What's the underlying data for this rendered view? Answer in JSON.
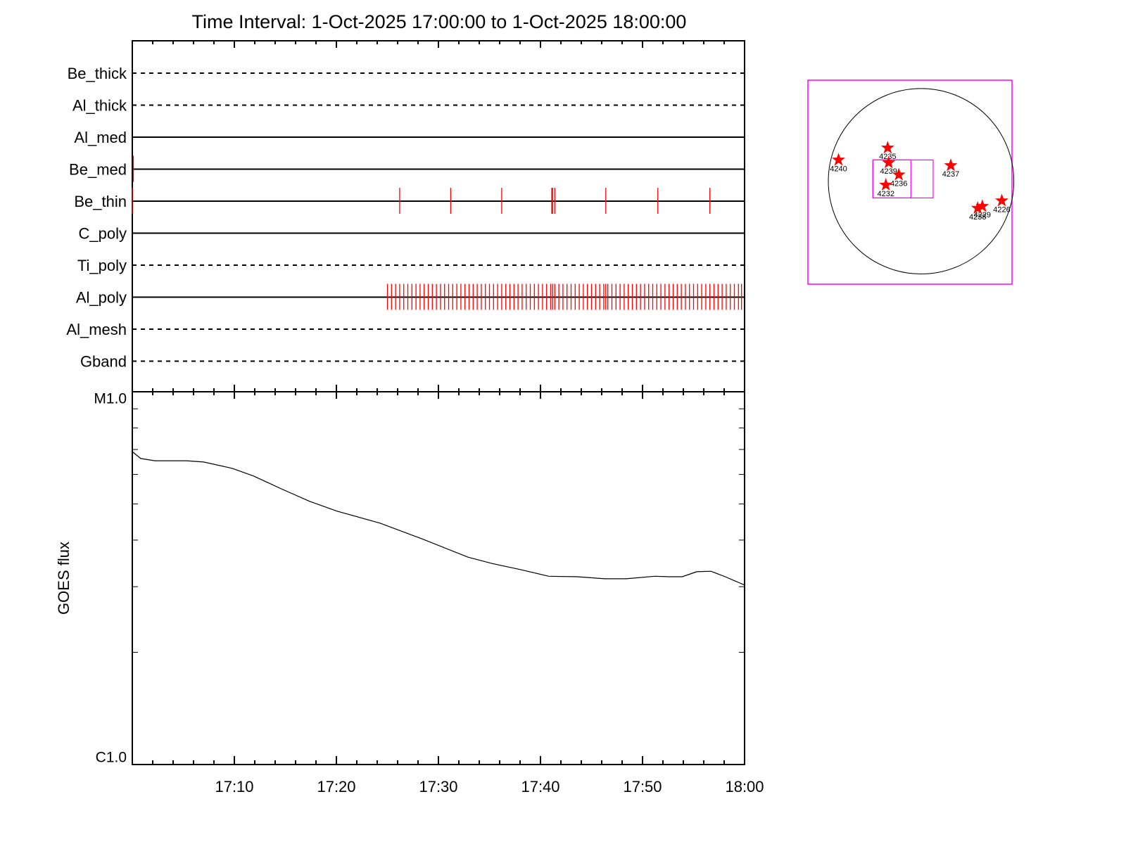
{
  "chart_data": [
    {
      "type": "timeline",
      "title": "Time Interval:  1-Oct-2025 17:00:00 to  1-Oct-2025 18:00:00",
      "categories": [
        "Be_thick",
        "Al_thick",
        "Al_med",
        "Be_med",
        "Be_thin",
        "C_poly",
        "Ti_poly",
        "Al_poly",
        "Al_mesh",
        "Gband"
      ],
      "line_styles": [
        "dashed",
        "dashed",
        "solid",
        "solid",
        "solid",
        "solid",
        "dashed",
        "solid",
        "dashed",
        "dashed"
      ],
      "event_color": "#ff0000",
      "xlim": [
        0,
        60
      ],
      "events": [
        [],
        [],
        [],
        [
          0.1
        ],
        [
          0,
          26.2,
          31.2,
          36.2,
          41.1,
          41.2,
          41.4,
          46.4,
          51.5,
          56.6
        ],
        [],
        [],
        [
          25,
          25.4,
          25.8,
          26.2,
          26.6,
          27,
          27.4,
          27.8,
          28.2,
          28.6,
          29,
          29.4,
          29.8,
          30.2,
          30.6,
          31,
          31.4,
          31.8,
          32.2,
          32.6,
          33,
          33.4,
          33.8,
          34.2,
          34.6,
          35,
          35.4,
          35.8,
          36.2,
          36.6,
          37,
          37.4,
          37.8,
          38.2,
          38.6,
          39,
          39.4,
          39.8,
          40.2,
          40.6,
          41,
          41.2,
          41.4,
          41.8,
          42.2,
          42.6,
          43,
          43.4,
          43.8,
          44.2,
          44.6,
          45,
          45.4,
          45.8,
          46.2,
          46.4,
          46.6,
          47,
          47.4,
          47.8,
          48.2,
          48.6,
          49,
          49.4,
          49.8,
          50.2,
          50.6,
          51,
          51.4,
          51.8,
          52.2,
          52.6,
          53,
          53.4,
          53.8,
          54.2,
          54.6,
          55,
          55.4,
          55.8,
          56.2,
          56.6,
          57,
          57.4,
          57.8,
          58.2,
          58.6,
          59,
          59.4,
          59.7
        ],
        [],
        []
      ]
    },
    {
      "type": "line",
      "y_label": "GOES flux",
      "log_scale": true,
      "color": "#000000",
      "xlim": [
        0,
        60
      ],
      "xticks": [
        {
          "value": 10,
          "label": "17:10"
        },
        {
          "value": 20,
          "label": "17:20"
        },
        {
          "value": 30,
          "label": "17:30"
        },
        {
          "value": 40,
          "label": "17:40"
        },
        {
          "value": 50,
          "label": "17:50"
        },
        {
          "value": 60,
          "label": "18:00"
        }
      ],
      "xticks_minor": [
        2,
        4,
        6,
        8,
        12,
        14,
        16,
        18,
        22,
        24,
        26,
        28,
        32,
        34,
        36,
        38,
        42,
        44,
        46,
        48,
        52,
        54,
        56,
        58
      ],
      "ylim": [
        1e-06,
        1e-05
      ],
      "yticks": [
        {
          "value": 1e-05,
          "label": "M1.0"
        },
        {
          "value": 1e-06,
          "label": "C1.0"
        }
      ],
      "yticks_minor": [
        2e-06,
        3e-06,
        4e-06,
        5e-06,
        6e-06,
        7e-06,
        8e-06,
        9e-06
      ],
      "x": [
        0,
        0.83,
        2.2,
        5.3,
        7.0,
        9.8,
        11.9,
        14.6,
        17.4,
        20.1,
        24.3,
        28.4,
        32.9,
        35.3,
        38.1,
        40.8,
        43.6,
        46.3,
        48.4,
        51.2,
        52.6,
        53.9,
        55.3,
        56.7,
        58.1,
        60
      ],
      "values": [
        6.91e-06,
        6.62e-06,
        6.53e-06,
        6.53e-06,
        6.48e-06,
        6.23e-06,
        5.94e-06,
        5.49e-06,
        5.08e-06,
        4.78e-06,
        4.44e-06,
        4.03e-06,
        3.6e-06,
        3.46e-06,
        3.33e-06,
        3.2e-06,
        3.19e-06,
        3.15e-06,
        3.15e-06,
        3.2e-06,
        3.19e-06,
        3.19e-06,
        3.29e-06,
        3.3e-06,
        3.19e-06,
        3.03e-06
      ]
    },
    {
      "type": "map",
      "box_color": "#ff00ff",
      "marker_color": "#ff0000",
      "xlim": [
        -1.22,
        0.98
      ],
      "ylim": [
        -1.11,
        1.09
      ],
      "fov_boxes": [
        [
          -0.52,
          -0.18,
          0.13,
          0.23
        ],
        [
          -0.52,
          -0.18,
          -0.11,
          0.23
        ]
      ],
      "regions": [
        {
          "name": "4240",
          "x": -0.89,
          "y": 0.23
        },
        {
          "name": "4235",
          "x": -0.36,
          "y": 0.36
        },
        {
          "name": "4239",
          "x": -0.35,
          "y": 0.2
        },
        {
          "name": "4236",
          "x": -0.24,
          "y": 0.07
        },
        {
          "name": "4232",
          "x": -0.38,
          "y": -0.04
        },
        {
          "name": "4237",
          "x": 0.32,
          "y": 0.17
        },
        {
          "name": "4226",
          "x": 0.87,
          "y": -0.21
        },
        {
          "name": "4229",
          "x": 0.66,
          "y": -0.27
        },
        {
          "name": "4238",
          "x": 0.61,
          "y": -0.29
        }
      ]
    }
  ]
}
